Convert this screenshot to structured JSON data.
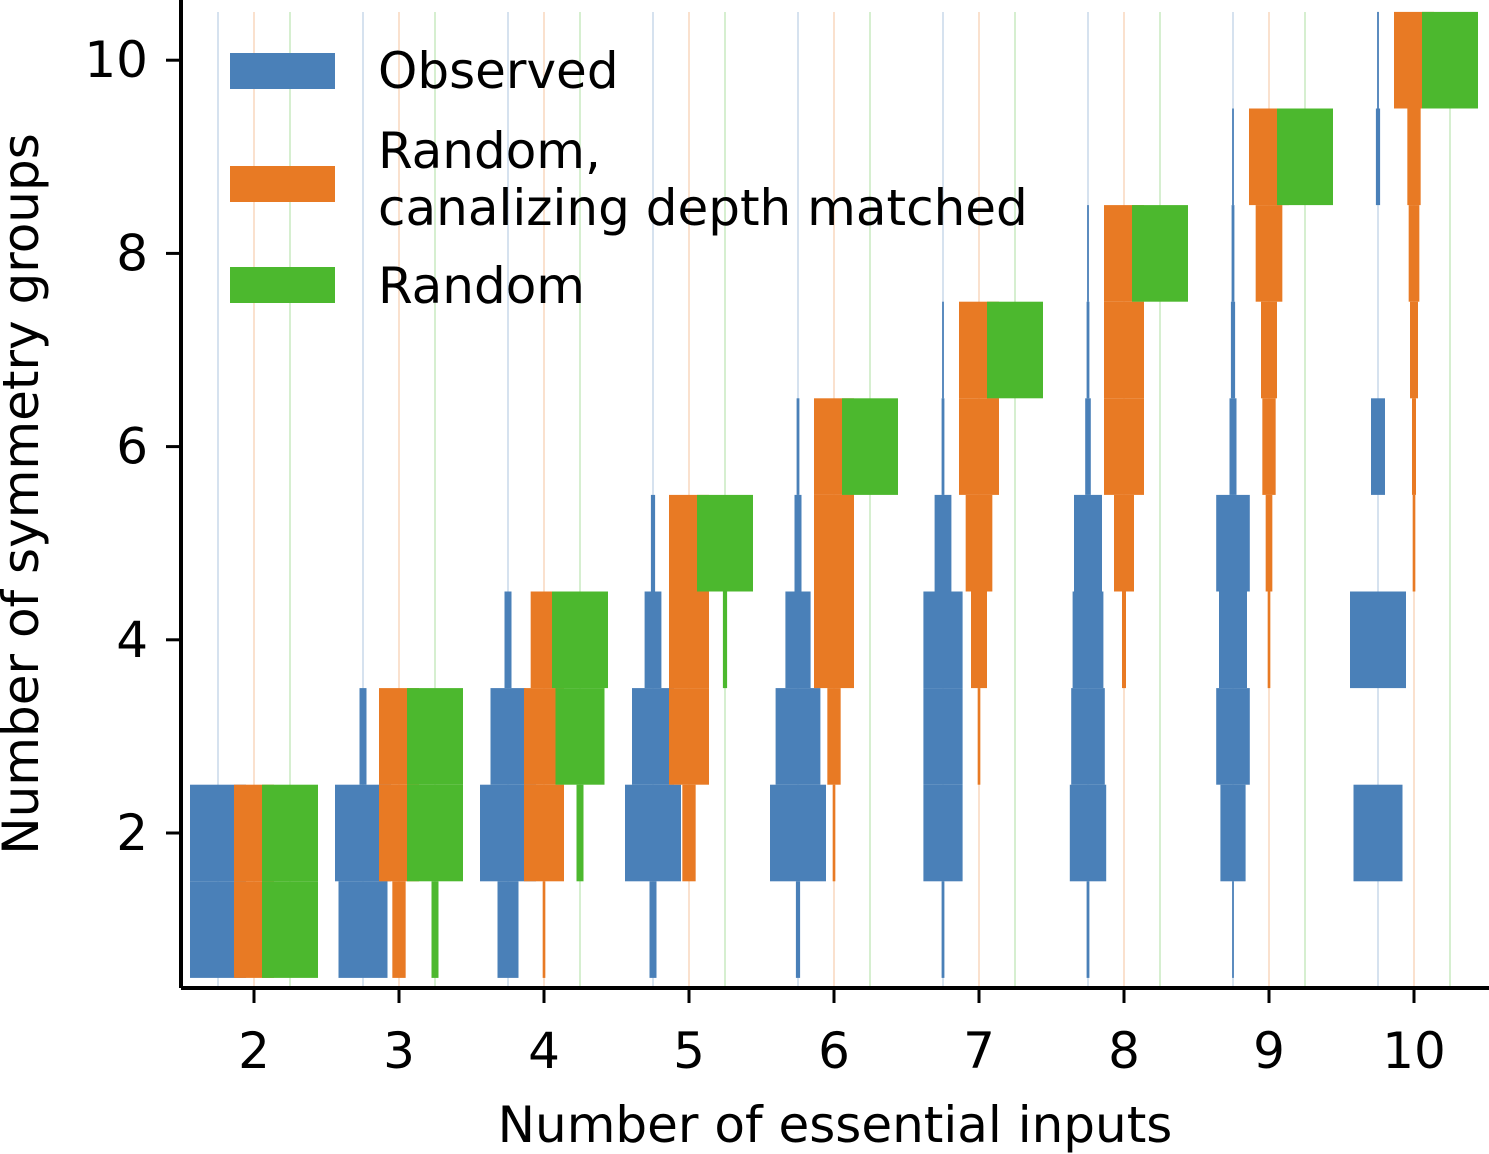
{
  "chart_data": {
    "type": "bar",
    "xlabel": "Number of essential inputs",
    "ylabel": "Number of symmetry groups",
    "xticks": [
      "2",
      "3",
      "4",
      "5",
      "6",
      "7",
      "8",
      "9",
      "10"
    ],
    "yticks": [
      "2",
      "4",
      "6",
      "8",
      "10"
    ],
    "ylim": [
      0.4,
      10.6
    ],
    "grid": false,
    "legend_position": "top-left",
    "series": [
      {
        "name": "Observed",
        "color": "#4a80b8",
        "width_scale": 0.4,
        "distributions": [
          {
            "k": 2,
            "fractions": [
              0.55,
              0.45
            ]
          },
          {
            "k": 3,
            "fractions": [
              0.35,
              0.6,
              0.05
            ]
          },
          {
            "k": 4,
            "fractions": [
              0.15,
              0.55,
              0.25,
              0.05
            ]
          },
          {
            "k": 5,
            "fractions": [
              0.05,
              0.5,
              0.3,
              0.12,
              0.03
            ]
          },
          {
            "k": 6,
            "fractions": [
              0.03,
              0.4,
              0.32,
              0.18,
              0.05,
              0.02
            ]
          },
          {
            "k": 7,
            "fractions": [
              0.02,
              0.28,
              0.28,
              0.28,
              0.12,
              0.02,
              0.01
            ]
          },
          {
            "k": 8,
            "fractions": [
              0.02,
              0.26,
              0.24,
              0.22,
              0.2,
              0.04,
              0.02,
              0.01
            ]
          },
          {
            "k": 9,
            "fractions": [
              0.01,
              0.18,
              0.24,
              0.2,
              0.24,
              0.05,
              0.03,
              0.02,
              0.01
            ]
          },
          {
            "k": 10,
            "fractions": [
              0,
              0.35,
              0,
              0.5,
              0,
              0.1,
              0,
              0,
              0.03,
              0.01
            ]
          }
        ]
      },
      {
        "name": "Random,\ncanalizing depth matched",
        "color": "#e87a24",
        "width_scale": 0.3,
        "distributions": [
          {
            "k": 2,
            "fractions": [
              0.9,
              0.9
            ]
          },
          {
            "k": 3,
            "fractions": [
              0.1,
              0.9,
              0.4
            ]
          },
          {
            "k": 4,
            "fractions": [
              0.02,
              0.6,
              0.6,
              0.2
            ]
          },
          {
            "k": 5,
            "fractions": [
              0,
              0.1,
              0.4,
              0.5,
              0.3
            ]
          },
          {
            "k": 6,
            "fractions": [
              0,
              0.02,
              0.1,
              0.5,
              0.5,
              0.4
            ]
          },
          {
            "k": 7,
            "fractions": [
              0,
              0,
              0.02,
              0.12,
              0.2,
              0.5,
              0.7
            ]
          },
          {
            "k": 8,
            "fractions": [
              0,
              0,
              0,
              0.03,
              0.15,
              0.3,
              0.35,
              0.5
            ]
          },
          {
            "k": 9,
            "fractions": [
              0,
              0,
              0,
              0.02,
              0.05,
              0.1,
              0.12,
              0.2,
              0.7
            ]
          },
          {
            "k": 10,
            "fractions": [
              0,
              0,
              0,
              0,
              0.02,
              0.03,
              0.06,
              0.08,
              0.1,
              0.7
            ]
          }
        ]
      },
      {
        "name": "Random",
        "color": "#4cb82e",
        "width_scale": 0.4,
        "distributions": [
          {
            "k": 2,
            "fractions": [
              0.6,
              0.4
            ]
          },
          {
            "k": 3,
            "fractions": [
              0.05,
              0.55,
              0.4
            ]
          },
          {
            "k": 4,
            "fractions": [
              0,
              0.05,
              0.35,
              0.6
            ]
          },
          {
            "k": 5,
            "fractions": [
              0,
              0,
              0,
              0.03,
              0.97
            ]
          },
          {
            "k": 6,
            "fractions": [
              0,
              0,
              0,
              0,
              0,
              1
            ]
          },
          {
            "k": 7,
            "fractions": [
              0,
              0,
              0,
              0,
              0,
              0,
              1
            ]
          },
          {
            "k": 8,
            "fractions": [
              0,
              0,
              0,
              0,
              0,
              0,
              0,
              1
            ]
          },
          {
            "k": 9,
            "fractions": [
              0,
              0,
              0,
              0,
              0,
              0,
              0,
              0,
              1
            ]
          },
          {
            "k": 10,
            "fractions": [
              0,
              0,
              0,
              0,
              0,
              0,
              0,
              0,
              0,
              1
            ]
          }
        ]
      }
    ]
  }
}
